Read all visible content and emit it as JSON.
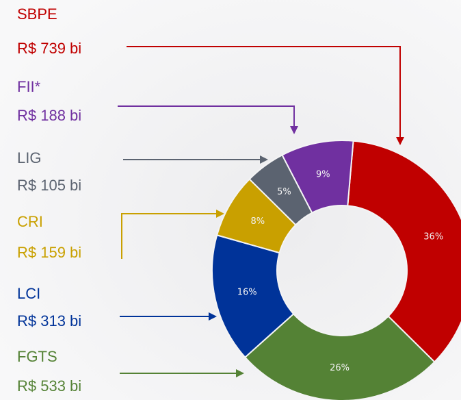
{
  "chart_data": {
    "type": "donut",
    "categories": [
      "SBPE",
      "FGTS",
      "LCI",
      "CRI",
      "LIG",
      "FII*"
    ],
    "values": [
      36,
      26,
      16,
      8,
      5,
      9
    ],
    "value_labels": [
      "36%",
      "26%",
      "16%",
      "8%",
      "5%",
      "9%"
    ],
    "amount_labels": [
      "R$ 739 bi",
      "R$ 533 bi",
      "R$ 313 bi",
      "R$ 159 bi",
      "R$ 105 bi",
      "R$ 188 bi"
    ],
    "colors": [
      "#c00000",
      "#548235",
      "#003399",
      "#c9a000",
      "#5b6370",
      "#7030a0"
    ]
  }
}
